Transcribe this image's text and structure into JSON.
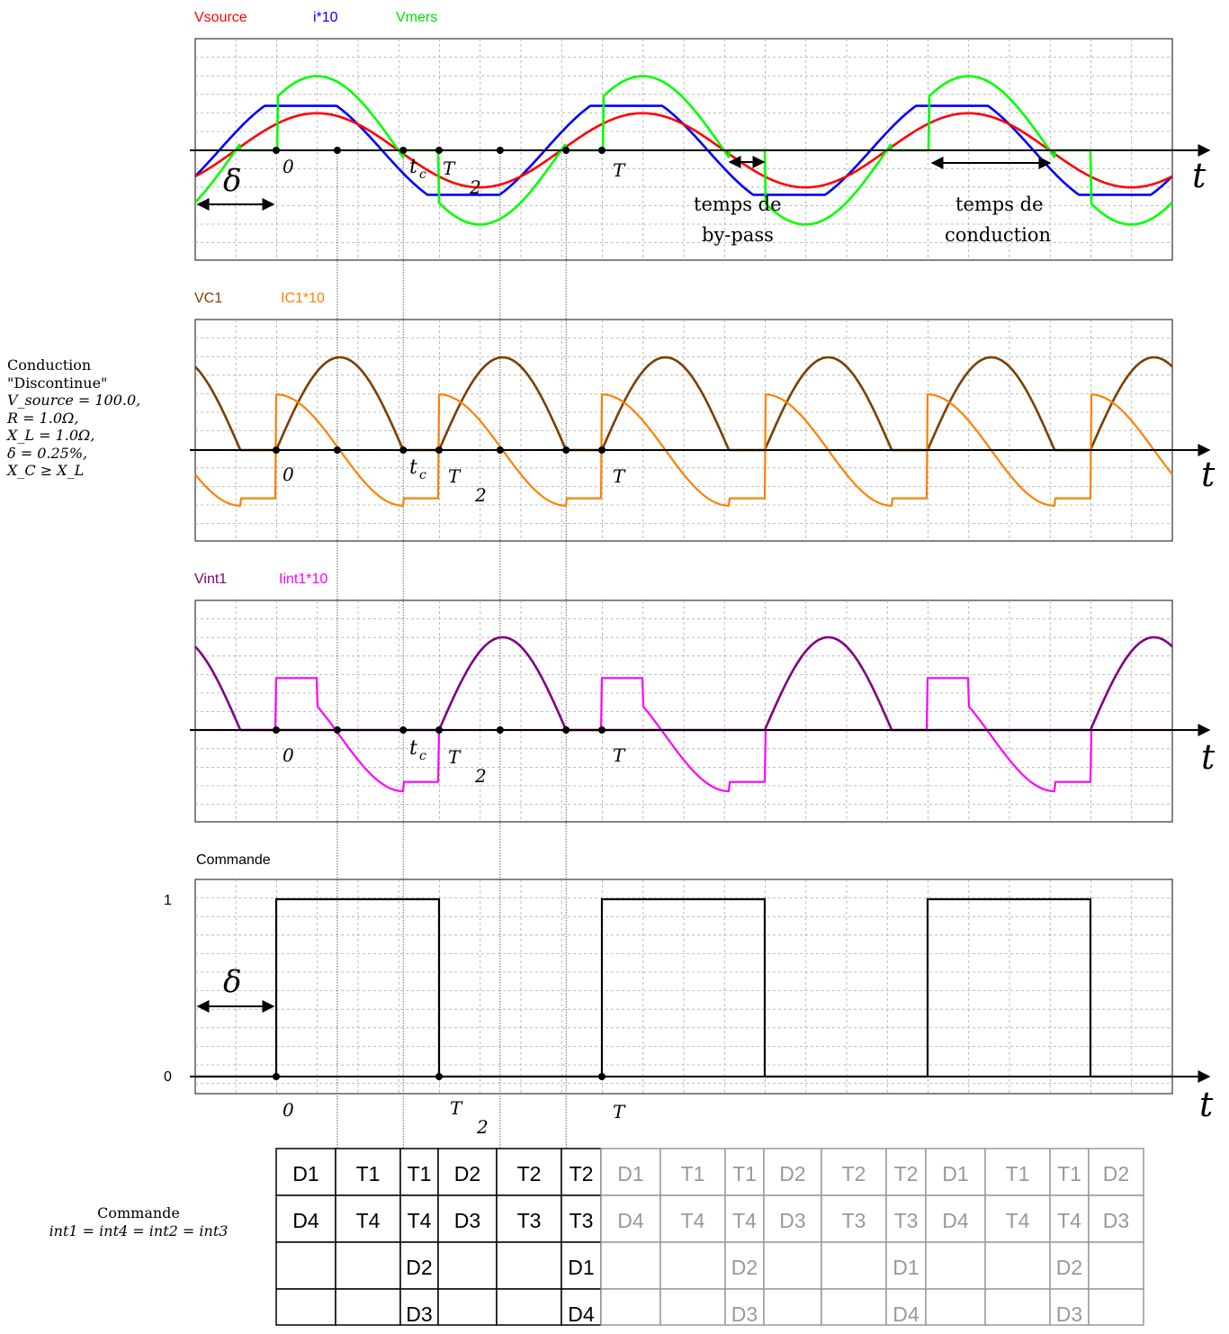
{
  "chart_data": [
    {
      "type": "line",
      "title": "",
      "legend": [
        {
          "name": "Vsource",
          "color": "#ff0000"
        },
        {
          "name": "i*10",
          "color": "#0000ff"
        },
        {
          "name": "Vmers",
          "color": "#00ff00"
        }
      ],
      "series": [
        {
          "name": "Vsource",
          "waveform": "sine",
          "peak_divs": 2.0,
          "zero_crossing_ms": -2.5
        },
        {
          "name": "i*10",
          "waveform": "phase-shifted sine with flat plateaus",
          "peak_divs": 2.4
        },
        {
          "name": "Vmers",
          "waveform": "sine segments with zero-voltage intervals",
          "peak_divs": 4.0
        }
      ],
      "period_ms": 20,
      "x_range_ms": [
        -5,
        55
      ],
      "grid": true,
      "annotations": [
        "δ",
        "0",
        "t_c",
        "T/2",
        "T",
        "t",
        "temps de by-pass",
        "temps de conduction"
      ]
    },
    {
      "type": "line",
      "legend": [
        {
          "name": "VC1",
          "color": "#7b3f00"
        },
        {
          "name": "IC1*10",
          "color": "#ff8000"
        }
      ],
      "series": [
        {
          "name": "VC1",
          "waveform": "positive sinusoidal arcs",
          "peak_divs": 5.0
        },
        {
          "name": "IC1*10",
          "waveform": "decaying arcs with sharp jumps",
          "peak_divs": 3.0
        }
      ],
      "grid": true,
      "annotations": [
        "0",
        "t_c",
        "T/2",
        "T",
        "t"
      ]
    },
    {
      "type": "line",
      "legend": [
        {
          "name": "Vint1",
          "color": "#800080"
        },
        {
          "name": "Iint1*10",
          "color": "#ff00ff"
        }
      ],
      "series": [
        {
          "name": "Vint1",
          "waveform": "positive half-sine pulses",
          "peak_divs": 5.0
        },
        {
          "name": "Iint1*10",
          "waveform": "stepped sinusoidal pulses",
          "peak_divs": 3.0
        }
      ],
      "grid": true,
      "annotations": [
        "0",
        "t_c",
        "T/2",
        "T",
        "t"
      ]
    },
    {
      "type": "line",
      "legend": [
        {
          "name": "Commande",
          "color": "#000000"
        }
      ],
      "series": [
        {
          "name": "Commande",
          "waveform": "square wave",
          "values": [
            0,
            1
          ],
          "duty_cycle": 0.5,
          "period_ms": 20
        }
      ],
      "y_ticks": [
        "1",
        "0"
      ],
      "grid": true,
      "annotations": [
        "δ",
        "0",
        "T/2",
        "T",
        "t"
      ]
    }
  ],
  "labels": {
    "panel1_legend": [
      "Vsource",
      "i*10",
      "Vmers"
    ],
    "panel2_legend": [
      "VC1",
      "IC1*10"
    ],
    "panel3_legend": [
      "Vint1",
      "Iint1*10"
    ],
    "panel4_title": "Commande",
    "commande_y1": "1",
    "commande_y0": "0",
    "delta": "δ",
    "zero": "0",
    "tc": "t",
    "tc_sub": "c",
    "T_half_num": "T",
    "T_half_den": "2",
    "T": "T",
    "t": "t",
    "bypass_1": "temps de",
    "bypass_2": "by-pass",
    "conduction_1": "temps de",
    "conduction_2": "conduction"
  },
  "side_note": {
    "line1": "Conduction",
    "line2": "\"Discontinue\"",
    "line3": "V_source = 100.0,",
    "line4": "R = 1.0Ω,",
    "line5": "X_L = 1.0Ω,",
    "line6": "δ = 0.25%,",
    "line7": "X_C ≥ X_L"
  },
  "bottom_note": {
    "line1": "Commande",
    "line2": "int1 = int4 = int2 = int3"
  },
  "switch_table": {
    "rows": [
      [
        "D1",
        "T1",
        "T1",
        "D2",
        "T2",
        "T2",
        "D1",
        "T1",
        "T1",
        "D2",
        "T2",
        "T2",
        "D1",
        "T1",
        "T1",
        "D2"
      ],
      [
        "D4",
        "T4",
        "T4",
        "D3",
        "T3",
        "T3",
        "D4",
        "T4",
        "T4",
        "D3",
        "T3",
        "T3",
        "D4",
        "T4",
        "T4",
        "D3"
      ],
      [
        "",
        "",
        "D2",
        "",
        "",
        "D1",
        "",
        "",
        "D2",
        "",
        "",
        "D1",
        "",
        "",
        "D2",
        ""
      ],
      [
        "",
        "",
        "D3",
        "",
        "",
        "D4",
        "",
        "",
        "D3",
        "",
        "",
        "D4",
        "",
        "",
        "D3",
        ""
      ]
    ],
    "active_columns": 6
  },
  "colors": {
    "vsource": "#ff0000",
    "i10": "#0000ff",
    "vmers": "#00ff00",
    "vc1": "#7b3f00",
    "ic1": "#ff8000",
    "vint1": "#800080",
    "iint1": "#ff00ff",
    "commande": "#000000",
    "table_active": "#000000",
    "table_inactive": "#999999"
  }
}
